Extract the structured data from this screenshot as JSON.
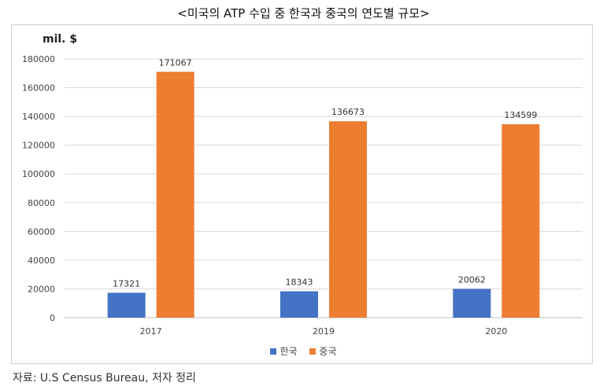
{
  "title": "<미국의 ATP 수입 중 한국과 중국의 연도별 규모>",
  "unit_label": "mil. $",
  "source": "자료: U.S Census Bureau, 저자 정리",
  "colors": {
    "korea": "#4472C4",
    "china": "#ED7D31",
    "grid": "#d9d9d9"
  },
  "chart_data": {
    "type": "bar",
    "categories": [
      "2017",
      "2019",
      "2020"
    ],
    "series": [
      {
        "name": "한국",
        "values": [
          17321,
          18343,
          20062
        ]
      },
      {
        "name": "중국",
        "values": [
          171067,
          136673,
          134599
        ]
      }
    ],
    "ylim": [
      0,
      180000
    ],
    "yticks": [
      0,
      20000,
      40000,
      60000,
      80000,
      100000,
      120000,
      140000,
      160000,
      180000
    ],
    "grid": true,
    "legend": "bottom"
  }
}
